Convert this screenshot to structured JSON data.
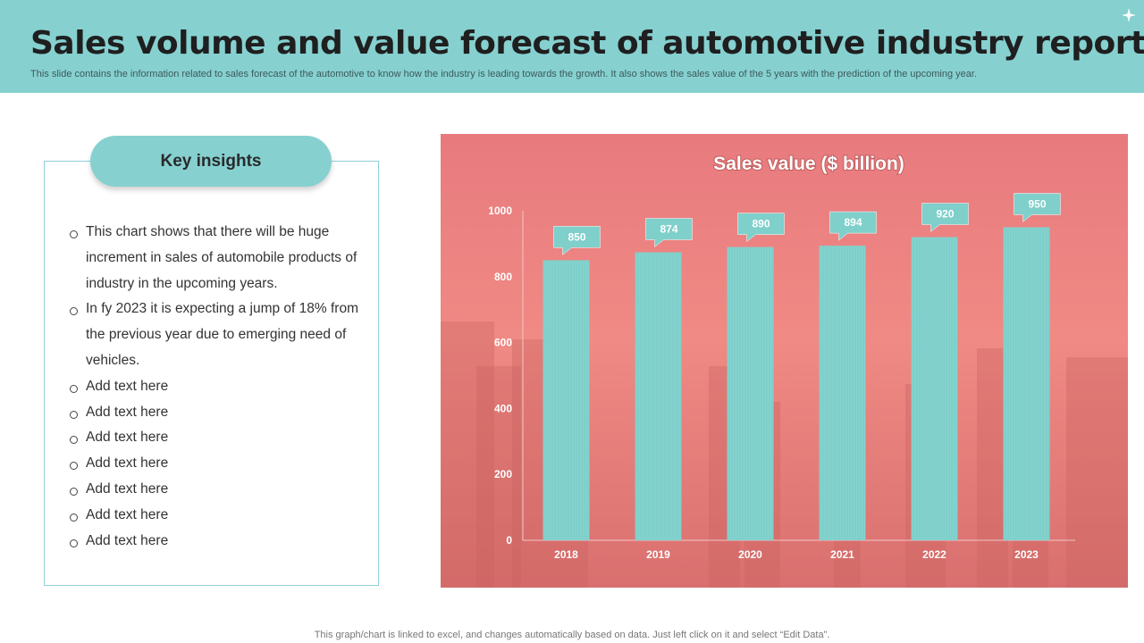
{
  "header": {
    "title": "Sales volume and value forecast of automotive industry report",
    "subtitle": "This slide contains the information  related to sales  forecast  of the automotive to know  how the industry is leading towards the growth. It also shows the sales value of the 5 years with the prediction of the upcoming year."
  },
  "insights": {
    "heading": "Key insights",
    "items": [
      "This chart shows that there will be  huge increment in sales of automobile products of industry in the upcoming years.",
      "In fy 2023 it is expecting a jump of 18% from the previous year due to emerging need of vehicles.",
      "Add text here",
      "Add text here",
      "Add text here",
      "Add text here",
      "Add text here",
      "Add text here",
      "Add text here"
    ]
  },
  "chart_data": {
    "type": "bar",
    "title": "Sales value ($ billion)",
    "categories": [
      "2018",
      "2019",
      "2020",
      "2021",
      "2022",
      "2023"
    ],
    "values": [
      850,
      874,
      890,
      894,
      920,
      950
    ],
    "data_labels": [
      "850",
      "874",
      "890",
      "894",
      "920",
      "950"
    ],
    "yticks": [
      "0",
      "200",
      "400",
      "600",
      "800",
      "1000"
    ],
    "ylim": [
      0,
      1000
    ],
    "xlabel": "",
    "ylabel": "",
    "bar_color": "#7fcfcb",
    "background_tint": "#e88080"
  },
  "footer": {
    "note": "This graph/chart is linked to excel,  and changes automatically based on data. Just left click on it and select “Edit Data”."
  }
}
